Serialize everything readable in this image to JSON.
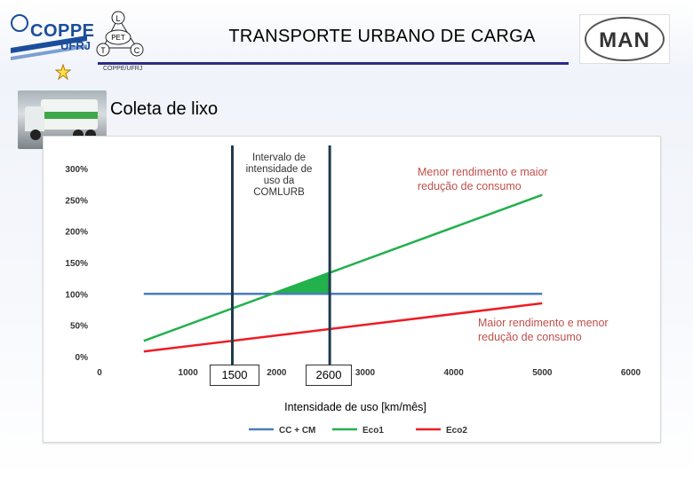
{
  "header": {
    "title": "TRANSPORTE URBANO DE CARGA",
    "coppe_logo": {
      "brand": "COPPE",
      "sub": "UFRJ",
      "caption": "COPPE/UFRJ"
    },
    "pet_logo": {
      "center": "PET",
      "top": "L",
      "left": "T",
      "right": "C"
    },
    "man_logo": {
      "text": "MAN"
    }
  },
  "section": {
    "title": "Coleta de lixo"
  },
  "annotations": {
    "interval": "Intervalo de intensidade de uso da COMLURB",
    "upper": "Menor rendimento e maior  redução de consumo",
    "lower": "Maior rendimento e menor redução de consumo",
    "marker_low": "1500",
    "marker_high": "2600"
  },
  "chart_data": {
    "type": "line",
    "xlabel": "Intensidade de uso [km/mês]",
    "ylabel": "",
    "xlim": [
      0,
      6000
    ],
    "ylim": [
      0,
      300
    ],
    "x_ticks": [
      0,
      1000,
      2000,
      3000,
      4000,
      5000,
      6000
    ],
    "y_ticks": [
      0,
      50,
      100,
      150,
      200,
      250,
      300
    ],
    "y_tick_labels": [
      "0%",
      "50%",
      "100%",
      "150%",
      "200%",
      "250%",
      "300%"
    ],
    "series": [
      {
        "name": "CC + CM",
        "color": "#4a7ebb",
        "x": [
          500,
          5000
        ],
        "y": [
          100,
          100
        ]
      },
      {
        "name": "Eco1",
        "color": "#22b14c",
        "x": [
          500,
          5000
        ],
        "y": [
          25,
          258
        ]
      },
      {
        "name": "Eco2",
        "color": "#ee1c25",
        "x": [
          500,
          5000
        ],
        "y": [
          8,
          85
        ]
      }
    ],
    "vertical_markers": [
      1500,
      2600
    ],
    "shaded_region": {
      "x_from": 2000,
      "x_to": 2600,
      "y_base": 100,
      "color": "#22b14c"
    },
    "legend_position": "bottom"
  }
}
